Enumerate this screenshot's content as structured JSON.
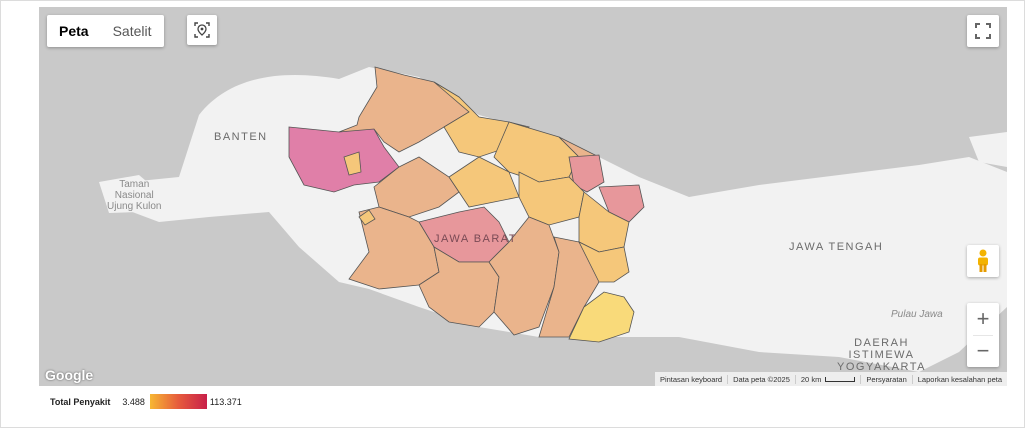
{
  "map_type": {
    "map_label": "Peta",
    "satellite_label": "Satelit",
    "selected": "Peta"
  },
  "icons": {
    "location": "location-pin-icon",
    "fullscreen": "fullscreen-icon",
    "pegman": "pegman-icon",
    "zoom_in": "plus-icon",
    "zoom_out": "minus-icon"
  },
  "zoom": {
    "in_label": "+",
    "out_label": "−"
  },
  "place_labels": {
    "banten": "BANTEN",
    "taman": [
      "Taman",
      "Nasional",
      "Ujung Kulon"
    ],
    "jawa_barat": "JAWA BARAT",
    "jawa_tengah": "JAWA TENGAH",
    "pulau_jawa": "Pulau Jawa",
    "diy": [
      "DAERAH",
      "ISTIMEWA",
      "YOGYAKARTA"
    ]
  },
  "branding": "Google",
  "attribution": {
    "keyboard": "Pintasan keyboard",
    "data": "Data peta ©2025",
    "scale": "20 km",
    "terms": "Persyaratan",
    "report": "Laporkan kesalahan peta"
  },
  "legend": {
    "title": "Total Penyakit",
    "min": "3.488",
    "max": "113.371",
    "color_min": "#f7b733",
    "color_max": "#c8204a"
  },
  "colors": {
    "water": "#c9c9c9",
    "land": "#f2f2f2",
    "high": "#e07fa8",
    "mid": "#eab48c",
    "low": "#f5c77a",
    "lowest": "#f9da7a"
  }
}
